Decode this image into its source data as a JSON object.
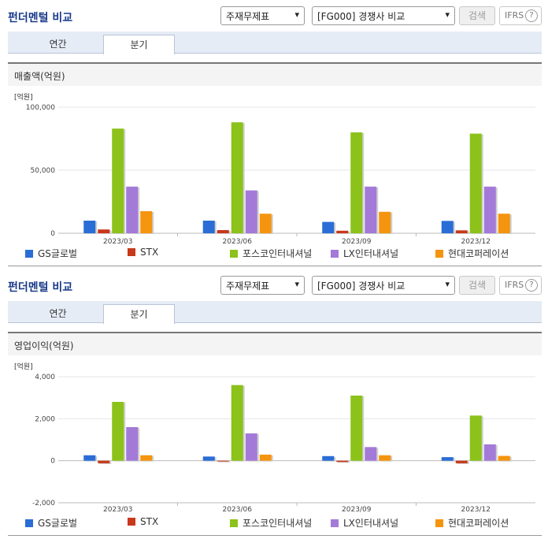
{
  "panels": [
    {
      "title": "펀더멘털 비교",
      "select1": "주재무제표",
      "select2": "[FG000] 경쟁사 비교",
      "search_label": "검색",
      "ifrs_label": "IFRS",
      "help_symbol": "?",
      "tabs": [
        "연간",
        "분기"
      ],
      "active_tab": "분기",
      "section_title": "매출액(억원)",
      "chart_data": {
        "type": "bar",
        "title": "",
        "ylabel": "[억원]",
        "ylim": [
          0,
          100000
        ],
        "yticks": [
          0,
          50000,
          100000
        ],
        "ytick_labels": [
          "0",
          "50,000",
          "100,000"
        ],
        "categories": [
          "2023/03",
          "2023/06",
          "2023/09",
          "2023/12"
        ],
        "series": [
          {
            "name": "GS글로벌",
            "color": "#2a6dd6",
            "values": [
              10000,
              10000,
              9000,
              9800
            ]
          },
          {
            "name": "STX",
            "color": "#c8381a",
            "values": [
              3000,
              2500,
              2000,
              2300
            ]
          },
          {
            "name": "포스코인터내셔널",
            "color": "#8cc21a",
            "values": [
              83000,
              88000,
              80000,
              79000
            ]
          },
          {
            "name": "LX인터내셔널",
            "color": "#a47ad8",
            "values": [
              37000,
              34000,
              37000,
              37000
            ]
          },
          {
            "name": "현대코퍼레이션",
            "color": "#f5940e",
            "values": [
              17500,
              15500,
              17000,
              15500
            ]
          }
        ],
        "legend_position": "bottom",
        "grid": true
      }
    },
    {
      "title": "펀더멘털 비교",
      "select1": "주재무제표",
      "select2": "[FG000] 경쟁사 비교",
      "search_label": "검색",
      "ifrs_label": "IFRS",
      "help_symbol": "?",
      "tabs": [
        "연간",
        "분기"
      ],
      "active_tab": "분기",
      "section_title": "영업이익(억원)",
      "chart_data": {
        "type": "bar",
        "title": "",
        "ylabel": "[억원]",
        "ylim": [
          -2000,
          4000
        ],
        "yticks": [
          -2000,
          0,
          2000,
          4000
        ],
        "ytick_labels": [
          "-2,000",
          "0",
          "2,000",
          "4,000"
        ],
        "categories": [
          "2023/03",
          "2023/06",
          "2023/09",
          "2023/12"
        ],
        "series": [
          {
            "name": "GS글로벌",
            "color": "#2a6dd6",
            "values": [
              260,
              200,
              220,
              170
            ]
          },
          {
            "name": "STX",
            "color": "#c8381a",
            "values": [
              -120,
              0,
              -60,
              -120
            ]
          },
          {
            "name": "포스코인터내셔널",
            "color": "#8cc21a",
            "values": [
              2800,
              3600,
              3100,
              2150
            ]
          },
          {
            "name": "LX인터내셔널",
            "color": "#a47ad8",
            "values": [
              1600,
              1300,
              650,
              780
            ]
          },
          {
            "name": "현대코퍼레이션",
            "color": "#f5940e",
            "values": [
              260,
              290,
              260,
              230
            ]
          }
        ],
        "legend_position": "bottom",
        "grid": true
      }
    }
  ]
}
